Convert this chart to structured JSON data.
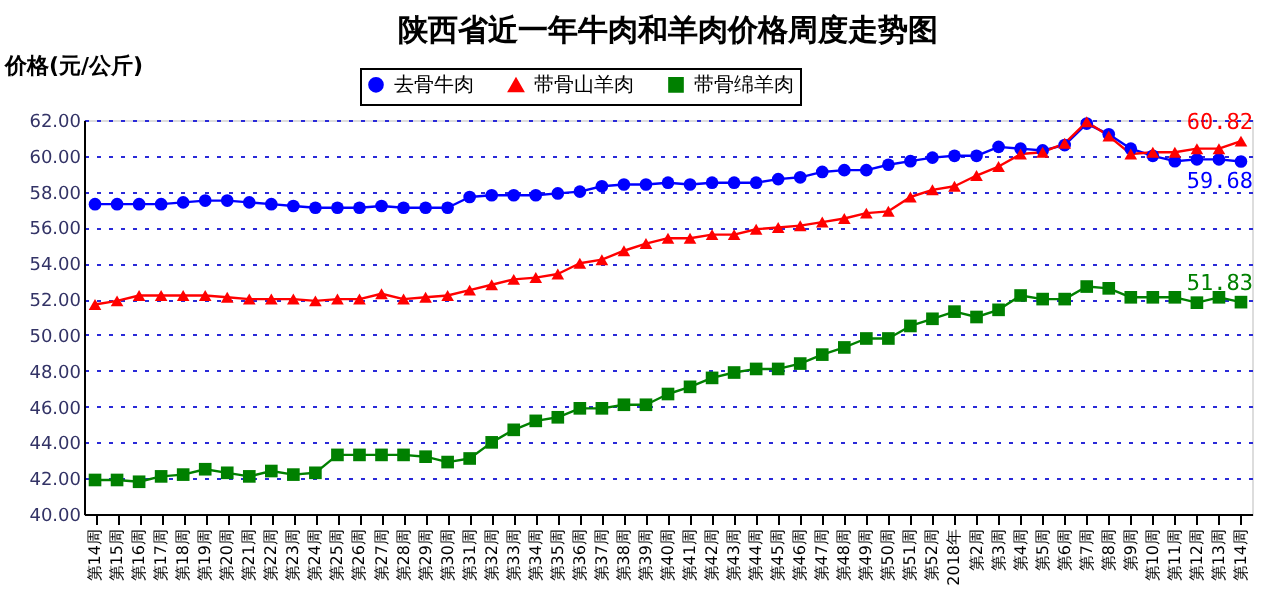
{
  "chart_data": {
    "type": "line",
    "title": "陕西省近一年牛肉和羊肉价格周度走势图",
    "ylabel": "价格(元/公斤)",
    "categories": [
      "第14周",
      "第15周",
      "第16周",
      "第17周",
      "第18周",
      "第19周",
      "第20周",
      "第21周",
      "第22周",
      "第23周",
      "第24周",
      "第25周",
      "第26周",
      "第27周",
      "第28周",
      "第29周",
      "第30周",
      "第31周",
      "第32周",
      "第33周",
      "第34周",
      "第35周",
      "第36周",
      "第37周",
      "第38周",
      "第39周",
      "第40周",
      "第41周",
      "第42周",
      "第43周",
      "第44周",
      "第45周",
      "第46周",
      "第47周",
      "第48周",
      "第49周",
      "第50周",
      "第51周",
      "第52周",
      "2018年",
      "第2周",
      "第3周",
      "第4周",
      "第5周",
      "第6周",
      "第7周",
      "第8周",
      "第9周",
      "第10周",
      "第11周",
      "第12周",
      "第13周",
      "第14周"
    ],
    "series": [
      {
        "name": "去骨牛肉",
        "color": "#0000ff",
        "marker": "circle",
        "values": [
          57.3,
          57.3,
          57.3,
          57.3,
          57.4,
          57.5,
          57.5,
          57.4,
          57.3,
          57.2,
          57.1,
          57.1,
          57.1,
          57.2,
          57.1,
          57.1,
          57.1,
          57.7,
          57.8,
          57.8,
          57.8,
          57.9,
          58.0,
          58.3,
          58.4,
          58.4,
          58.5,
          58.4,
          58.5,
          58.5,
          58.5,
          58.7,
          58.8,
          59.1,
          59.2,
          59.2,
          59.5,
          59.7,
          59.9,
          60.0,
          60.0,
          60.5,
          60.4,
          60.3,
          60.6,
          61.8,
          61.2,
          60.4,
          60.0,
          59.7,
          59.8,
          59.8,
          59.68
        ],
        "value_labels": [
          null,
          null,
          null,
          null,
          null,
          null,
          null,
          null,
          null,
          null,
          null,
          null,
          null,
          null,
          null,
          null,
          null,
          null,
          null,
          null,
          null,
          null,
          null,
          null,
          null,
          null,
          null,
          null,
          null,
          null,
          null,
          null,
          null,
          null,
          null,
          null,
          null,
          null,
          null,
          null,
          null,
          null,
          null,
          null,
          null,
          null,
          null,
          null,
          null,
          null,
          null,
          null,
          "59.68"
        ]
      },
      {
        "name": "带骨山羊肉",
        "color": "#ff0000",
        "marker": "triangle",
        "values": [
          51.7,
          51.9,
          52.2,
          52.2,
          52.2,
          52.2,
          52.1,
          52.0,
          52.0,
          52.0,
          51.9,
          52.0,
          52.0,
          52.3,
          52.0,
          52.1,
          52.2,
          52.5,
          52.8,
          53.1,
          53.2,
          53.4,
          54.0,
          54.2,
          54.7,
          55.1,
          55.4,
          55.4,
          55.6,
          55.6,
          55.9,
          56.0,
          56.1,
          56.3,
          56.5,
          56.8,
          56.9,
          57.7,
          58.1,
          58.3,
          58.9,
          59.4,
          60.1,
          60.2,
          60.7,
          61.9,
          61.1,
          60.1,
          60.2,
          60.2,
          60.4,
          60.4,
          60.82
        ],
        "value_labels": [
          null,
          null,
          null,
          null,
          null,
          null,
          null,
          null,
          null,
          null,
          null,
          null,
          null,
          null,
          null,
          null,
          null,
          null,
          null,
          null,
          null,
          null,
          null,
          null,
          null,
          null,
          null,
          null,
          null,
          null,
          null,
          null,
          null,
          null,
          null,
          null,
          null,
          null,
          null,
          null,
          null,
          null,
          null,
          null,
          null,
          null,
          null,
          null,
          null,
          null,
          null,
          null,
          "60.82"
        ]
      },
      {
        "name": "带骨绵羊肉",
        "color": "#008000",
        "marker": "square",
        "values": [
          41.9,
          41.9,
          41.8,
          42.1,
          42.2,
          42.5,
          42.3,
          42.1,
          42.4,
          42.2,
          42.3,
          43.3,
          43.3,
          43.3,
          43.3,
          43.2,
          42.9,
          43.1,
          44.0,
          44.7,
          45.2,
          45.4,
          45.9,
          45.9,
          46.1,
          46.1,
          46.7,
          47.1,
          47.6,
          47.9,
          48.1,
          48.1,
          48.4,
          48.9,
          49.3,
          49.8,
          49.8,
          50.5,
          50.9,
          51.3,
          51.0,
          51.4,
          52.2,
          52.0,
          52.0,
          52.7,
          52.6,
          52.1,
          52.1,
          52.1,
          51.8,
          52.1,
          51.83
        ],
        "value_labels": [
          null,
          null,
          null,
          null,
          null,
          null,
          null,
          null,
          null,
          null,
          null,
          null,
          null,
          null,
          null,
          null,
          null,
          null,
          null,
          null,
          null,
          null,
          null,
          null,
          null,
          null,
          null,
          null,
          null,
          null,
          null,
          null,
          null,
          null,
          null,
          null,
          null,
          null,
          null,
          null,
          null,
          null,
          null,
          null,
          null,
          null,
          null,
          null,
          null,
          null,
          null,
          null,
          "51.83"
        ]
      }
    ],
    "ylim": [
      40,
      62
    ],
    "yticks": [
      {
        "value": 40,
        "label": "40.00"
      },
      {
        "value": 42,
        "label": "42.00"
      },
      {
        "value": 44,
        "label": "44.00"
      },
      {
        "value": 46,
        "label": "46.00"
      },
      {
        "value": 48,
        "label": "48.00"
      },
      {
        "value": 50,
        "label": "50.00"
      },
      {
        "value": 52,
        "label": "52.00"
      },
      {
        "value": 54,
        "label": "54.00"
      },
      {
        "value": 56,
        "label": "56.00"
      },
      {
        "value": 58,
        "label": "58.00"
      },
      {
        "value": 60,
        "label": "60.00"
      },
      {
        "value": 62,
        "label": "62.00"
      }
    ],
    "grid": "y",
    "legend": "top"
  }
}
